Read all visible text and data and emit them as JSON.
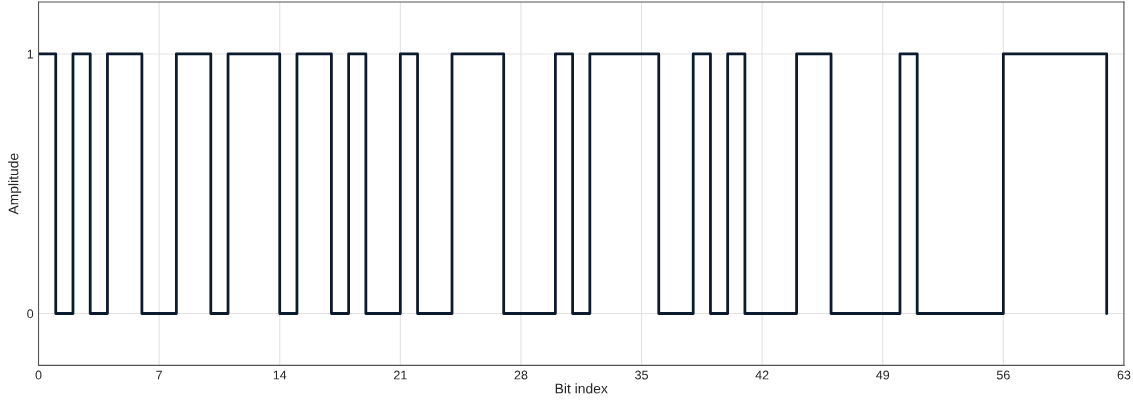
{
  "chart_data": {
    "type": "step",
    "xlabel": "Bit index",
    "ylabel": "Amplitude",
    "x": [
      0,
      1,
      2,
      3,
      4,
      5,
      6,
      7,
      8,
      9,
      10,
      11,
      12,
      13,
      14,
      15,
      16,
      17,
      18,
      19,
      20,
      21,
      22,
      23,
      24,
      25,
      26,
      27,
      28,
      29,
      30,
      31,
      32,
      33,
      34,
      35,
      36,
      37,
      38,
      39,
      40,
      41,
      42,
      43,
      44,
      45,
      46,
      47,
      48,
      49,
      50,
      51,
      52,
      53,
      54,
      55,
      56,
      57,
      58,
      59,
      60,
      61,
      62
    ],
    "series": [
      {
        "color": "#0b1a2c",
        "values": [
          1,
          0,
          1,
          0,
          1,
          1,
          0,
          0,
          1,
          1,
          0,
          1,
          1,
          1,
          0,
          1,
          1,
          0,
          1,
          0,
          0,
          1,
          0,
          0,
          1,
          1,
          1,
          0,
          0,
          0,
          1,
          0,
          1,
          1,
          1,
          1,
          0,
          0,
          1,
          0,
          1,
          0,
          0,
          0,
          1,
          1,
          0,
          0,
          0,
          0,
          1,
          0,
          0,
          0,
          0,
          0,
          1,
          1,
          1,
          1,
          1,
          1,
          0
        ]
      }
    ],
    "xlim": [
      0,
      63
    ],
    "xticks": [
      0,
      7,
      14,
      21,
      28,
      35,
      42,
      49,
      56,
      63
    ],
    "ylim": [
      -0.2,
      1.2
    ],
    "yticks": [
      0,
      1
    ],
    "grid": true,
    "line_style": "solid"
  }
}
